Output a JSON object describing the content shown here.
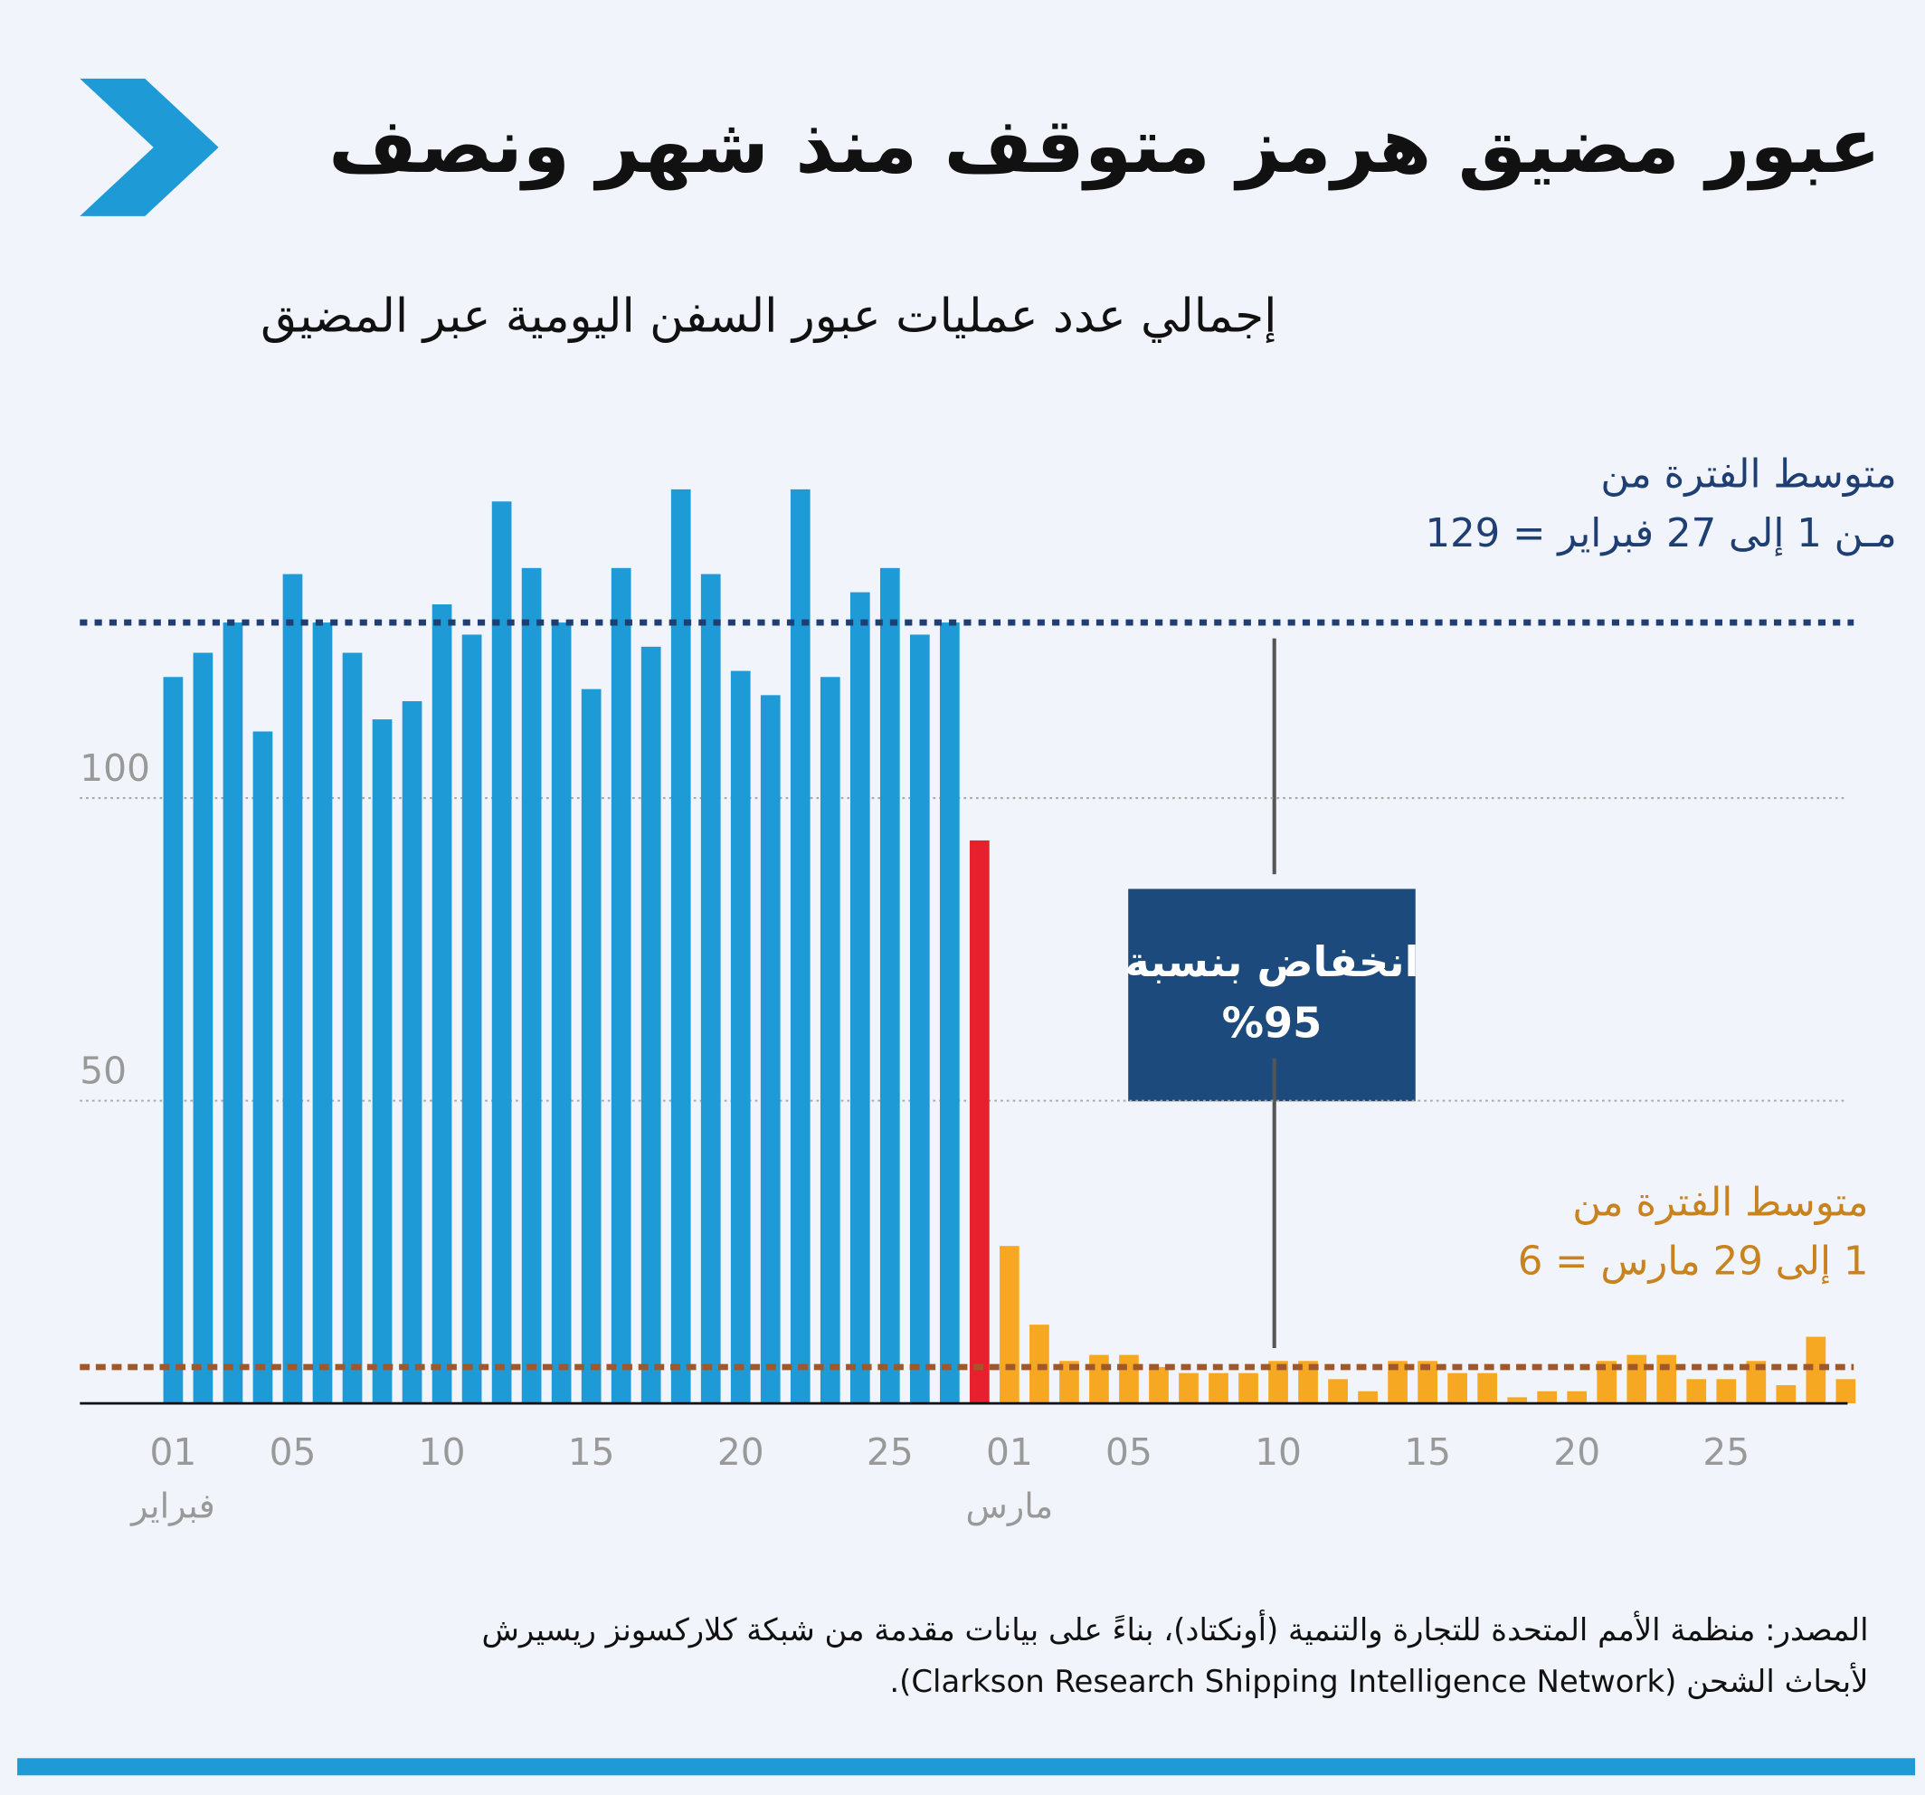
{
  "chart_data": {
    "type": "bar",
    "title": "عبور مضيق هرمز متوقف منذ شهر ونصف",
    "subtitle": "إجمالي عدد عمليات عبور السفن اليومية عبر المضيق",
    "categories": [
      "01",
      null,
      null,
      null,
      "05",
      null,
      null,
      null,
      null,
      "10",
      null,
      null,
      null,
      null,
      "15",
      null,
      null,
      null,
      null,
      "20",
      null,
      null,
      null,
      null,
      "25",
      null,
      null,
      null,
      "01",
      null,
      null,
      null,
      "05",
      null,
      null,
      null,
      null,
      "10",
      null,
      null,
      null,
      null,
      "15",
      null,
      null,
      null,
      null,
      "20",
      null,
      null,
      null,
      null,
      "25",
      null,
      null,
      null,
      null
    ],
    "month_labels": [
      {
        "label": "فبراير",
        "index": 0
      },
      {
        "label": "مارس",
        "index": 28
      }
    ],
    "values": [
      120,
      124,
      129,
      111,
      137,
      129,
      124,
      113,
      116,
      132,
      127,
      149,
      138,
      129,
      118,
      138,
      125,
      151,
      137,
      121,
      117,
      151,
      120,
      134,
      138,
      127,
      129,
      93,
      26,
      13,
      7,
      8,
      8,
      6,
      5,
      5,
      5,
      7,
      7,
      4,
      2,
      7,
      7,
      5,
      5,
      1,
      2,
      2,
      7,
      8,
      8,
      4,
      4,
      7,
      3,
      11,
      4
    ],
    "bar_colors": [
      "#1e9ad6",
      "#1e9ad6",
      "#1e9ad6",
      "#1e9ad6",
      "#1e9ad6",
      "#1e9ad6",
      "#1e9ad6",
      "#1e9ad6",
      "#1e9ad6",
      "#1e9ad6",
      "#1e9ad6",
      "#1e9ad6",
      "#1e9ad6",
      "#1e9ad6",
      "#1e9ad6",
      "#1e9ad6",
      "#1e9ad6",
      "#1e9ad6",
      "#1e9ad6",
      "#1e9ad6",
      "#1e9ad6",
      "#1e9ad6",
      "#1e9ad6",
      "#1e9ad6",
      "#1e9ad6",
      "#1e9ad6",
      "#1e9ad6",
      "#e8202e",
      "#f6a823",
      "#f6a823",
      "#f6a823",
      "#f6a823",
      "#f6a823",
      "#f6a823",
      "#f6a823",
      "#f6a823",
      "#f6a823",
      "#f6a823",
      "#f6a823",
      "#f6a823",
      "#f6a823",
      "#f6a823",
      "#f6a823",
      "#f6a823",
      "#f6a823",
      "#f6a823",
      "#f6a823",
      "#f6a823",
      "#f6a823",
      "#f6a823",
      "#f6a823",
      "#f6a823",
      "#f6a823",
      "#f6a823",
      "#f6a823",
      "#f6a823",
      "#f6a823"
    ],
    "ylim": [
      0,
      160
    ],
    "yticks": [
      50,
      100
    ],
    "grid": true,
    "ref_lines": [
      {
        "value": 129,
        "color": "#1f3f73",
        "label": [
          "متوسط الفترة من",
          "مـن  1 إلى 27 فبراير = 129"
        ]
      },
      {
        "value": 6,
        "color": "#a0582a",
        "label": [
          "متوسط الفترة من",
          "1 إلى 29 مارس = 6"
        ]
      }
    ],
    "annotation": [
      "انخفاض بنسبة",
      "%95"
    ],
    "source": [
      "المصدر: منظمة الأمم المتحدة للتجارة والتنمية (أونكتاد)، بناءً على بيانات مقدمة من شبكة كلاركسونز ريسيرش",
      "لأبحاث الشحن (Clarkson Research Shipping Intelligence Network)."
    ]
  }
}
